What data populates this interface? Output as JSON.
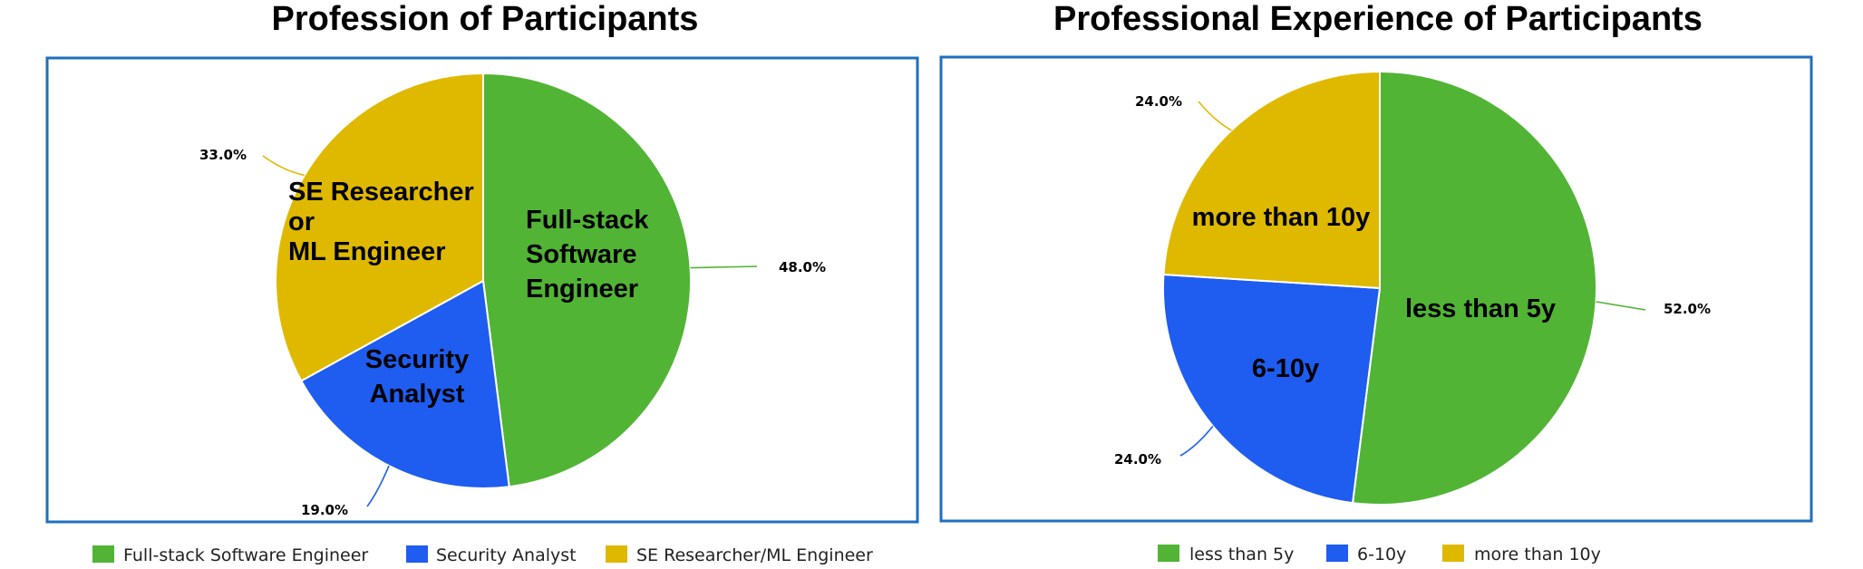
{
  "chart_data": [
    {
      "type": "pie",
      "title": "Profession of Participants",
      "frame_color": "#1f6fc0",
      "slices": [
        {
          "name": "Full-stack Software Engineer",
          "value": 48.0,
          "pct_label": "48.0%",
          "inner_label": [
            "Full-stack",
            "Software",
            "Engineer"
          ],
          "color": "#52b435"
        },
        {
          "name": "Security Analyst",
          "value": 19.0,
          "pct_label": "19.0%",
          "inner_label": [
            "Security",
            "Analyst"
          ],
          "color": "#1f5cf0"
        },
        {
          "name": "SE Researcher/ML Engineer",
          "value": 33.0,
          "pct_label": "33.0%",
          "inner_label": [
            "SE Researcher",
            "or",
            "ML Engineer"
          ],
          "color": "#dfb900"
        }
      ],
      "legend": [
        "Full-stack Software Engineer",
        "Security Analyst",
        "SE Researcher/ML Engineer"
      ],
      "legend_position": "bottom"
    },
    {
      "type": "pie",
      "title": "Professional Experience of Participants",
      "frame_color": "#1f6fc0",
      "slices": [
        {
          "name": "less than 5y",
          "value": 52.0,
          "pct_label": "52.0%",
          "inner_label": [
            "less than 5y"
          ],
          "color": "#52b435"
        },
        {
          "name": "6-10y",
          "value": 24.0,
          "pct_label": "24.0%",
          "inner_label": [
            "6-10y"
          ],
          "color": "#1f5cf0"
        },
        {
          "name": "more than 10y",
          "value": 24.0,
          "pct_label": "24.0%",
          "inner_label": [
            "more than 10y"
          ],
          "color": "#dfb900"
        }
      ],
      "legend": [
        "less than 5y",
        "6-10y",
        "more than 10y"
      ],
      "legend_position": "bottom"
    }
  ]
}
